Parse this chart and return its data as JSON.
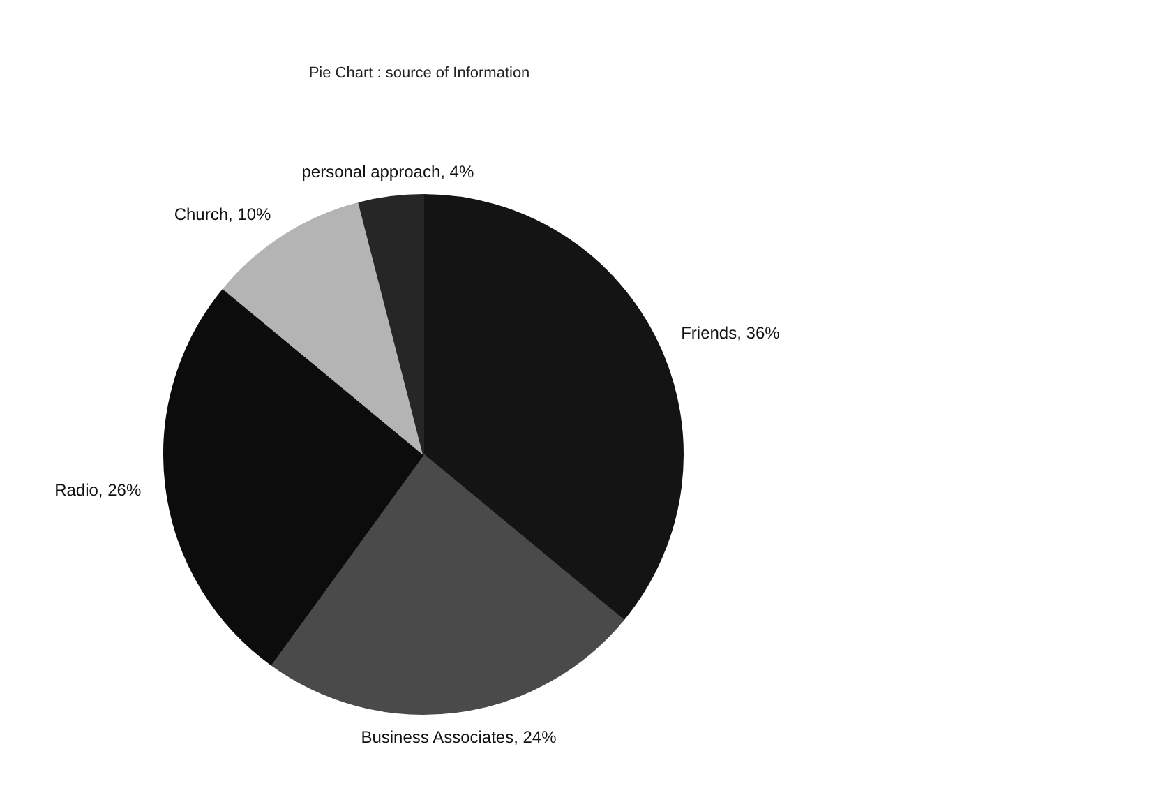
{
  "chart_data": {
    "type": "pie",
    "title": "Pie Chart : source of Information",
    "categories": [
      "Friends",
      "Business Associates",
      "Radio",
      "Church",
      "personal approach"
    ],
    "values": [
      36,
      24,
      26,
      10,
      4
    ],
    "value_labels": [
      "36%",
      "24%",
      "26%",
      "10%",
      "4%"
    ],
    "colors": [
      "#141414",
      "#4a4a4a",
      "#0c0c0c",
      "#b4b4b4",
      "#262626"
    ]
  }
}
